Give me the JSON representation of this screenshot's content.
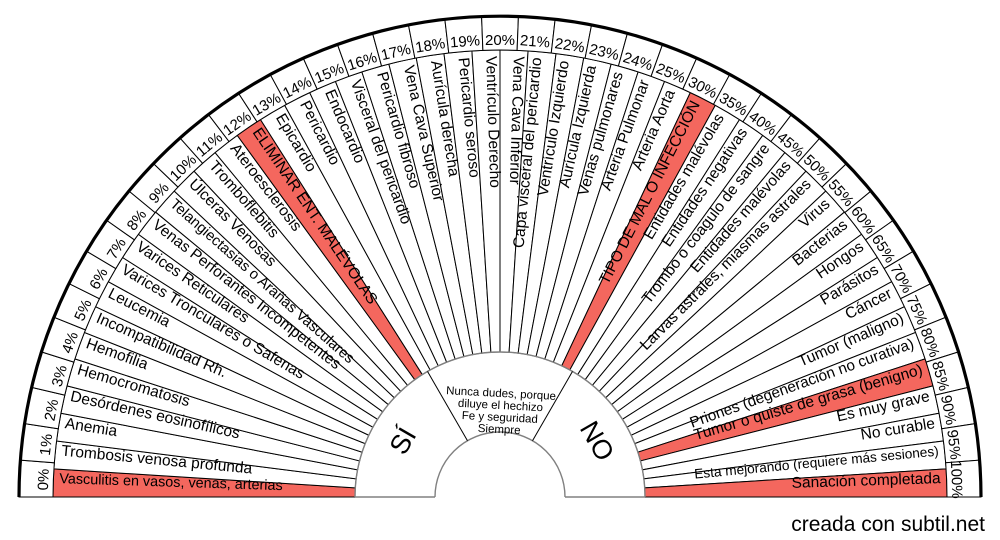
{
  "watermark": "creada con subtil.net",
  "chart_data": {
    "type": "pendulum-fan",
    "angle_span_degrees": 180,
    "center": {
      "yes_label": "SÍ",
      "no_label": "NO",
      "message_lines": [
        "Nunca dudes, porque",
        "diluye el hechizo",
        "Fe y seguridad",
        "Siempre"
      ]
    },
    "ring_percent_labels": [
      "0%",
      "1%",
      "2%",
      "3%",
      "4%",
      "5%",
      "6%",
      "7%",
      "8%",
      "9%",
      "10%",
      "11%",
      "12%",
      "13%",
      "14%",
      "15%",
      "16%",
      "17%",
      "18%",
      "19%",
      "20%",
      "21%",
      "22%",
      "23%",
      "24%",
      "25%",
      "30%",
      "35%",
      "40%",
      "45%",
      "50%",
      "55%",
      "60%",
      "65%",
      "70%",
      "75%",
      "80%",
      "85%",
      "90%",
      "95%",
      "100%"
    ],
    "segments": [
      {
        "label": "Vasculitis en vasos, venas, arterias",
        "highlight": true
      },
      {
        "label": "Trombosis venosa profunda",
        "highlight": false
      },
      {
        "label": "Anemia",
        "highlight": false
      },
      {
        "label": "Desórdenes eosinofílicos",
        "highlight": false
      },
      {
        "label": "Hemocromatosis",
        "highlight": false
      },
      {
        "label": "Hemofilia",
        "highlight": false
      },
      {
        "label": "Incompatibilidad Rh.",
        "highlight": false
      },
      {
        "label": "Leucemia",
        "highlight": false
      },
      {
        "label": "Varices Tronculares o Safenas",
        "highlight": false
      },
      {
        "label": "Varices Reticulares",
        "highlight": false
      },
      {
        "label": "Venas Perforantes Incompetentes",
        "highlight": false
      },
      {
        "label": "Telangiectasias o Arañas Vasculares",
        "highlight": false
      },
      {
        "label": "Úlceras Venosas",
        "highlight": false
      },
      {
        "label": "Tromboflebitis",
        "highlight": false
      },
      {
        "label": "Ateroesclerosis",
        "highlight": false
      },
      {
        "label": "ELIMINAR ENT. MALÉVOLAS",
        "highlight": true
      },
      {
        "label": "Epicardio",
        "highlight": false
      },
      {
        "label": "Pericardio",
        "highlight": false
      },
      {
        "label": "Endocardio",
        "highlight": false
      },
      {
        "label": "Visceral del pericardio",
        "highlight": false
      },
      {
        "label": "Pericardio fibroso",
        "highlight": false
      },
      {
        "label": "Vena Cava Superior",
        "highlight": false
      },
      {
        "label": "Aurícula derecha",
        "highlight": false
      },
      {
        "label": "Pericardio seroso",
        "highlight": false
      },
      {
        "label": "Ventrículo Derecho",
        "highlight": false
      },
      {
        "label": "Vena Cava Inferior",
        "highlight": false
      },
      {
        "label": "Capa visceral del pericardio",
        "highlight": false
      },
      {
        "label": "Ventrículo Izquierdo",
        "highlight": false
      },
      {
        "label": "Aurícula Izquierda",
        "highlight": false
      },
      {
        "label": "Venas pulmonares",
        "highlight": false
      },
      {
        "label": "Arteria Pulmonar",
        "highlight": false
      },
      {
        "label": "Arteria Aorta",
        "highlight": false
      },
      {
        "label": "TIPO DE MAL O INFECCIÓN",
        "highlight": true
      },
      {
        "label": "Entidades malévolas",
        "highlight": false
      },
      {
        "label": "Entidades negativas",
        "highlight": false
      },
      {
        "label": "Trombo o coagulo de sangre",
        "highlight": false
      },
      {
        "label": "Entidades malévolas",
        "highlight": false
      },
      {
        "label": "Larvas astrales, miasmas astrales",
        "highlight": false
      },
      {
        "label": "Virus",
        "highlight": false
      },
      {
        "label": "Bacterias",
        "highlight": false
      },
      {
        "label": "Hongos",
        "highlight": false
      },
      {
        "label": "Parásitos",
        "highlight": false
      },
      {
        "label": "Cáncer",
        "highlight": false
      },
      {
        "label": "Tumor (maligno)",
        "highlight": false
      },
      {
        "label": "Priones (degeneración no curativa)",
        "highlight": false
      },
      {
        "label": "Tumor o quiste de grasa (benigno)",
        "highlight": true
      },
      {
        "label": "Es muy grave",
        "highlight": false
      },
      {
        "label": "No curable",
        "highlight": false
      },
      {
        "label": "Esta mejorando (requiere más sesiones)",
        "highlight": false
      },
      {
        "label": "Sanación completada",
        "highlight": true
      }
    ],
    "colors": {
      "highlight": "#f4675e",
      "segment_fill": "#ffffff",
      "segment_border": "#000000",
      "inner_lines": "#808080",
      "watermark": "#c4c4c4"
    }
  }
}
